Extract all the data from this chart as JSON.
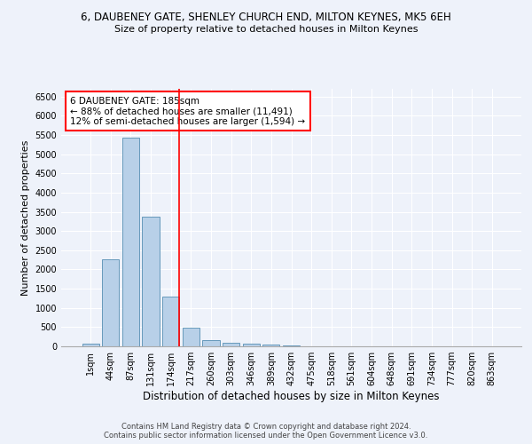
{
  "title": "6, DAUBENEY GATE, SHENLEY CHURCH END, MILTON KEYNES, MK5 6EH",
  "subtitle": "Size of property relative to detached houses in Milton Keynes",
  "xlabel": "Distribution of detached houses by size in Milton Keynes",
  "ylabel": "Number of detached properties",
  "footer_line1": "Contains HM Land Registry data © Crown copyright and database right 2024.",
  "footer_line2": "Contains public sector information licensed under the Open Government Licence v3.0.",
  "annotation_title": "6 DAUBENEY GATE: 185sqm",
  "annotation_line1": "← 88% of detached houses are smaller (11,491)",
  "annotation_line2": "12% of semi-detached houses are larger (1,594) →",
  "categories": [
    "1sqm",
    "44sqm",
    "87sqm",
    "131sqm",
    "174sqm",
    "217sqm",
    "260sqm",
    "303sqm",
    "346sqm",
    "389sqm",
    "432sqm",
    "475sqm",
    "518sqm",
    "561sqm",
    "604sqm",
    "648sqm",
    "691sqm",
    "734sqm",
    "777sqm",
    "820sqm",
    "863sqm"
  ],
  "values": [
    70,
    2270,
    5420,
    3380,
    1300,
    480,
    155,
    100,
    75,
    40,
    15,
    10,
    0,
    0,
    0,
    0,
    0,
    0,
    0,
    0,
    0
  ],
  "bar_color": "#b8d0e8",
  "bar_edge_color": "#6699bb",
  "vline_color": "red",
  "vline_position": 4.42,
  "annotation_box_facecolor": "white",
  "annotation_box_edgecolor": "red",
  "background_color": "#eef2fa",
  "grid_color": "white",
  "ylim": [
    0,
    6700
  ],
  "yticks": [
    0,
    500,
    1000,
    1500,
    2000,
    2500,
    3000,
    3500,
    4000,
    4500,
    5000,
    5500,
    6000,
    6500
  ],
  "title_fontsize": 8.5,
  "subtitle_fontsize": 8,
  "ylabel_fontsize": 8,
  "xlabel_fontsize": 8.5,
  "tick_fontsize": 7,
  "annotation_fontsize": 7.5,
  "footer_fontsize": 6
}
